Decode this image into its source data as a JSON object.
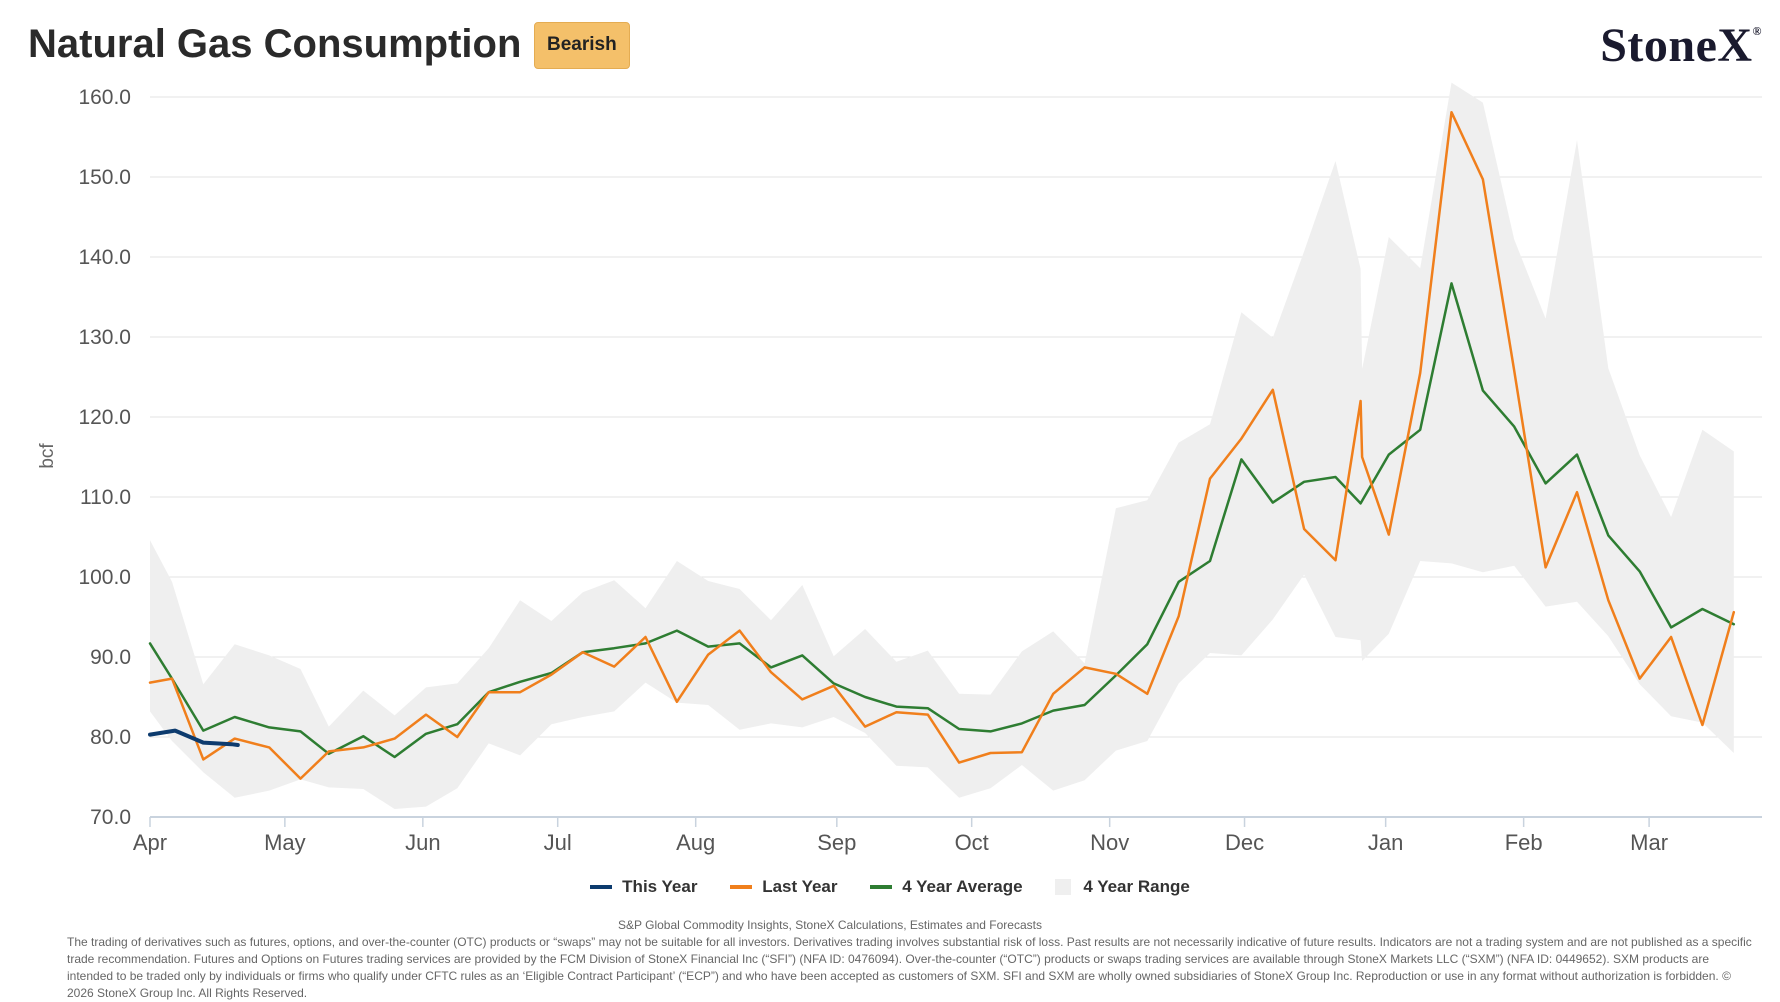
{
  "header": {
    "title": "Natural Gas Consumption",
    "badge": "Bearish",
    "logo_text": "StoneX",
    "logo_mark": "®"
  },
  "chart_data": {
    "type": "line",
    "title": "Natural Gas Consumption",
    "ylabel": "bcf",
    "xlabel": "",
    "ylim": [
      70,
      160
    ],
    "yticks": [
      "70.0",
      "80.0",
      "90.0",
      "100.0",
      "110.0",
      "120.0",
      "130.0",
      "140.0",
      "150.0",
      "160.0"
    ],
    "xlim": [
      0,
      51.4
    ],
    "months": [
      {
        "label": "Apr",
        "week": 0
      },
      {
        "label": "May",
        "week": 4.3
      },
      {
        "label": "Jun",
        "week": 8.7
      },
      {
        "label": "Jul",
        "week": 13.0
      },
      {
        "label": "Aug",
        "week": 17.4
      },
      {
        "label": "Sep",
        "week": 21.9
      },
      {
        "label": "Oct",
        "week": 26.2
      },
      {
        "label": "Nov",
        "week": 30.6
      },
      {
        "label": "Dec",
        "week": 34.9
      },
      {
        "label": "Jan",
        "week": 39.4
      },
      {
        "label": "Feb",
        "week": 43.8
      },
      {
        "label": "Mar",
        "week": 47.8
      }
    ],
    "grid": true,
    "legend_position": "bottom-center",
    "series": [
      {
        "name": "This Year",
        "color": "#0d3b6e",
        "points": [
          [
            0,
            80.3
          ],
          [
            0.8,
            80.8
          ],
          [
            1.7,
            79.3
          ],
          [
            2.6,
            79.1
          ],
          [
            2.8,
            79.0
          ]
        ]
      },
      {
        "name": "Last Year",
        "color": "#f07f1c",
        "points": [
          [
            0,
            86.8
          ],
          [
            0.7,
            87.3
          ],
          [
            1.7,
            77.2
          ],
          [
            2.7,
            79.8
          ],
          [
            3.8,
            78.7
          ],
          [
            4.8,
            74.8
          ],
          [
            5.7,
            78.2
          ],
          [
            6.8,
            78.7
          ],
          [
            7.8,
            79.8
          ],
          [
            8.8,
            82.8
          ],
          [
            9.8,
            80.0
          ],
          [
            10.8,
            85.6
          ],
          [
            11.8,
            85.6
          ],
          [
            12.8,
            87.8
          ],
          [
            13.8,
            90.6
          ],
          [
            14.8,
            88.8
          ],
          [
            15.8,
            92.5
          ],
          [
            16.8,
            84.4
          ],
          [
            17.8,
            90.3
          ],
          [
            18.8,
            93.3
          ],
          [
            19.8,
            88.1
          ],
          [
            20.8,
            84.7
          ],
          [
            21.8,
            86.4
          ],
          [
            22.8,
            81.3
          ],
          [
            23.8,
            83.1
          ],
          [
            24.8,
            82.8
          ],
          [
            25.8,
            76.8
          ],
          [
            26.8,
            78.0
          ],
          [
            27.8,
            78.1
          ],
          [
            28.8,
            85.4
          ],
          [
            29.8,
            88.7
          ],
          [
            30.8,
            87.9
          ],
          [
            31.8,
            85.4
          ],
          [
            32.8,
            95.1
          ],
          [
            33.8,
            112.3
          ],
          [
            34.8,
            117.3
          ],
          [
            35.8,
            123.4
          ],
          [
            36.8,
            106.0
          ],
          [
            37.8,
            102.1
          ],
          [
            38.6,
            122.0
          ],
          [
            38.65,
            115.0
          ],
          [
            39.5,
            105.3
          ],
          [
            40.5,
            125.5
          ],
          [
            41.5,
            158.1
          ],
          [
            42.5,
            149.7
          ],
          [
            43.5,
            125.8
          ],
          [
            44.5,
            101.2
          ],
          [
            45.5,
            110.6
          ],
          [
            46.5,
            97.1
          ],
          [
            47.5,
            87.3
          ],
          [
            48.5,
            92.5
          ],
          [
            49.5,
            81.5
          ],
          [
            50.5,
            95.6
          ]
        ]
      },
      {
        "name": "4 Year Average",
        "color": "#2e7d32",
        "points": [
          [
            0,
            91.7
          ],
          [
            0.7,
            87.3
          ],
          [
            1.7,
            80.8
          ],
          [
            2.7,
            82.5
          ],
          [
            3.8,
            81.2
          ],
          [
            4.8,
            80.7
          ],
          [
            5.7,
            77.9
          ],
          [
            6.8,
            80.1
          ],
          [
            7.8,
            77.5
          ],
          [
            8.8,
            80.4
          ],
          [
            9.8,
            81.6
          ],
          [
            10.8,
            85.6
          ],
          [
            11.8,
            86.9
          ],
          [
            12.8,
            88.0
          ],
          [
            13.8,
            90.6
          ],
          [
            14.8,
            91.1
          ],
          [
            15.8,
            91.7
          ],
          [
            16.8,
            93.3
          ],
          [
            17.8,
            91.3
          ],
          [
            18.8,
            91.7
          ],
          [
            19.8,
            88.7
          ],
          [
            20.8,
            90.2
          ],
          [
            21.8,
            86.7
          ],
          [
            22.8,
            85.0
          ],
          [
            23.8,
            83.8
          ],
          [
            24.8,
            83.6
          ],
          [
            25.8,
            81.0
          ],
          [
            26.8,
            80.7
          ],
          [
            27.8,
            81.7
          ],
          [
            28.8,
            83.3
          ],
          [
            29.8,
            84.0
          ],
          [
            30.8,
            87.7
          ],
          [
            31.8,
            91.6
          ],
          [
            32.8,
            99.4
          ],
          [
            33.8,
            102.0
          ],
          [
            34.8,
            114.7
          ],
          [
            35.8,
            109.3
          ],
          [
            36.8,
            111.9
          ],
          [
            37.8,
            112.5
          ],
          [
            38.6,
            109.2
          ],
          [
            39.5,
            115.3
          ],
          [
            40.5,
            118.4
          ],
          [
            41.5,
            136.7
          ],
          [
            42.5,
            123.3
          ],
          [
            43.5,
            118.8
          ],
          [
            44.5,
            111.7
          ],
          [
            45.5,
            115.3
          ],
          [
            46.5,
            105.2
          ],
          [
            47.5,
            100.7
          ],
          [
            48.5,
            93.7
          ],
          [
            49.5,
            96.0
          ],
          [
            50.5,
            94.1
          ]
        ]
      },
      {
        "name": "4 Year Range",
        "color": "#efefef",
        "upper": [
          [
            0,
            104.6
          ],
          [
            0.7,
            99.4
          ],
          [
            1.7,
            86.6
          ],
          [
            2.7,
            91.6
          ],
          [
            3.8,
            90.2
          ],
          [
            4.8,
            88.5
          ],
          [
            5.7,
            81.3
          ],
          [
            6.8,
            85.8
          ],
          [
            7.8,
            82.7
          ],
          [
            8.8,
            86.2
          ],
          [
            9.8,
            86.7
          ],
          [
            10.8,
            91.1
          ],
          [
            11.8,
            97.1
          ],
          [
            12.8,
            94.5
          ],
          [
            13.8,
            98.1
          ],
          [
            14.8,
            99.6
          ],
          [
            15.8,
            96.1
          ],
          [
            16.8,
            102.0
          ],
          [
            17.8,
            99.5
          ],
          [
            18.8,
            98.5
          ],
          [
            19.8,
            94.6
          ],
          [
            20.8,
            99.0
          ],
          [
            21.8,
            90.1
          ],
          [
            22.8,
            93.5
          ],
          [
            23.8,
            89.4
          ],
          [
            24.8,
            90.8
          ],
          [
            25.8,
            85.4
          ],
          [
            26.8,
            85.3
          ],
          [
            27.8,
            90.7
          ],
          [
            28.8,
            93.2
          ],
          [
            29.8,
            89.2
          ],
          [
            30.8,
            108.6
          ],
          [
            31.8,
            109.6
          ],
          [
            32.8,
            116.8
          ],
          [
            33.8,
            119.1
          ],
          [
            34.8,
            133.1
          ],
          [
            35.8,
            129.9
          ],
          [
            36.8,
            140.7
          ],
          [
            37.8,
            152.0
          ],
          [
            38.6,
            138.5
          ],
          [
            38.65,
            126.0
          ],
          [
            39.5,
            142.5
          ],
          [
            40.5,
            138.6
          ],
          [
            41.5,
            161.8
          ],
          [
            42.5,
            159.3
          ],
          [
            43.5,
            142.2
          ],
          [
            44.5,
            132.3
          ],
          [
            45.5,
            154.6
          ],
          [
            46.5,
            126.1
          ],
          [
            47.5,
            115.2
          ],
          [
            48.5,
            107.5
          ],
          [
            49.5,
            118.4
          ],
          [
            50.5,
            115.7
          ]
        ],
        "lower": [
          [
            0,
            83.2
          ],
          [
            0.7,
            79.5
          ],
          [
            1.7,
            75.6
          ],
          [
            2.7,
            72.4
          ],
          [
            3.8,
            73.3
          ],
          [
            4.8,
            74.7
          ],
          [
            5.7,
            73.7
          ],
          [
            6.8,
            73.5
          ],
          [
            7.8,
            71.0
          ],
          [
            8.8,
            71.3
          ],
          [
            9.8,
            73.6
          ],
          [
            10.8,
            79.2
          ],
          [
            11.8,
            77.7
          ],
          [
            12.8,
            81.6
          ],
          [
            13.8,
            82.5
          ],
          [
            14.8,
            83.2
          ],
          [
            15.8,
            86.8
          ],
          [
            16.8,
            84.3
          ],
          [
            17.8,
            84.0
          ],
          [
            18.8,
            80.9
          ],
          [
            19.8,
            81.7
          ],
          [
            20.8,
            81.2
          ],
          [
            21.8,
            82.5
          ],
          [
            22.8,
            80.5
          ],
          [
            23.8,
            76.4
          ],
          [
            24.8,
            76.2
          ],
          [
            25.8,
            72.4
          ],
          [
            26.8,
            73.6
          ],
          [
            27.8,
            76.5
          ],
          [
            28.8,
            73.3
          ],
          [
            29.8,
            74.6
          ],
          [
            30.8,
            78.3
          ],
          [
            31.8,
            79.5
          ],
          [
            32.8,
            86.7
          ],
          [
            33.8,
            90.5
          ],
          [
            34.8,
            90.2
          ],
          [
            35.8,
            94.7
          ],
          [
            36.8,
            100.3
          ],
          [
            37.8,
            92.5
          ],
          [
            38.6,
            92.1
          ],
          [
            38.65,
            89.5
          ],
          [
            39.5,
            92.9
          ],
          [
            40.5,
            102.0
          ],
          [
            41.5,
            101.7
          ],
          [
            42.5,
            100.6
          ],
          [
            43.5,
            101.4
          ],
          [
            44.5,
            96.3
          ],
          [
            45.5,
            96.9
          ],
          [
            46.5,
            92.6
          ],
          [
            47.5,
            86.6
          ],
          [
            48.5,
            82.6
          ],
          [
            49.5,
            81.8
          ],
          [
            50.5,
            78.0
          ]
        ]
      }
    ]
  },
  "legend": {
    "items": [
      {
        "label": "This Year",
        "color": "#0d3b6e"
      },
      {
        "label": "Last Year",
        "color": "#f07f1c"
      },
      {
        "label": "4 Year Average",
        "color": "#2e7d32"
      },
      {
        "label": "4 Year Range",
        "color": "#efefef"
      }
    ]
  },
  "footer": {
    "source": "S&P Global Commodity Insights, StoneX Calculations, Estimates and Forecasts",
    "disclaimer": "The trading of derivatives such as futures, options, and over-the-counter (OTC) products or “swaps” may not be suitable for all investors. Derivatives trading involves substantial risk of loss. Past results are not necessarily indicative of future results. Indicators are not a trading system and are not published as a specific trade recommendation. Futures and Options on Futures trading services are provided by the FCM Division of StoneX Financial Inc (“SFI”) (NFA ID: 0476094). Over-the-counter (“OTC”) products or swaps trading services are available through StoneX Markets LLC (“SXM”) (NFA ID: 0449652). SXM products are intended to be traded only by individuals or firms who qualify under CFTC rules as an ‘Eligible Contract Participant’ (“ECP”) and who have been accepted as customers of SXM. SFI and SXM are wholly owned subsidiaries of StoneX Group Inc. Reproduction or use in any format without authorization is forbidden. © 2026 StoneX Group Inc. All Rights Reserved."
  }
}
